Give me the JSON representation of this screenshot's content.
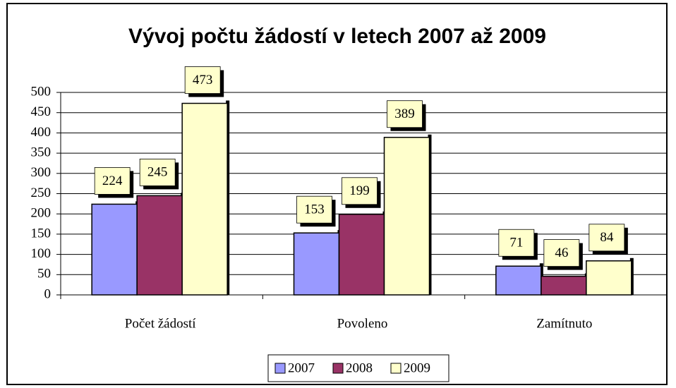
{
  "chart_data": {
    "type": "bar",
    "title": "Vývoj počtu žádostí v letech 2007 až 2009",
    "categories": [
      "Počet žádostí",
      "Povoleno",
      "Zamítnuto"
    ],
    "series": [
      {
        "name": "2007",
        "color": "#9999ff",
        "values": [
          224,
          153,
          71
        ]
      },
      {
        "name": "2008",
        "color": "#993366",
        "values": [
          245,
          199,
          46
        ]
      },
      {
        "name": "2009",
        "color": "#ffffcc",
        "values": [
          473,
          389,
          84
        ]
      }
    ],
    "ylim": [
      0,
      500
    ],
    "yticks": [
      0,
      50,
      100,
      150,
      200,
      250,
      300,
      350,
      400,
      450,
      500
    ],
    "grid": true,
    "legend": "bottom"
  }
}
